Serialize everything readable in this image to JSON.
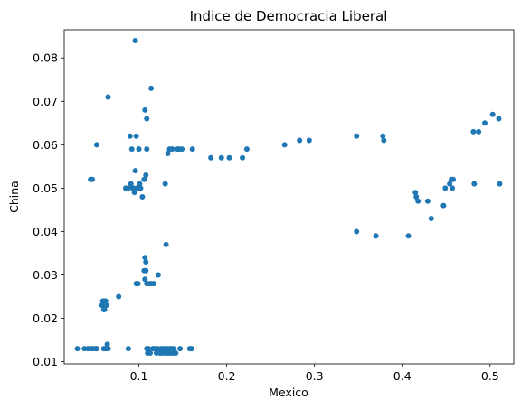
{
  "chart_data": {
    "type": "scatter",
    "title": "Indice de Democracia Liberal",
    "xlabel": "Mexico",
    "ylabel": "China",
    "xlim": [
      0.015,
      0.527
    ],
    "ylim": [
      0.0095,
      0.0865
    ],
    "xticks": [
      0.1,
      0.2,
      0.3,
      0.4,
      0.5
    ],
    "xtick_labels": [
      "0.1",
      "0.2",
      "0.3",
      "0.4",
      "0.5"
    ],
    "yticks": [
      0.01,
      0.02,
      0.03,
      0.04,
      0.05,
      0.06,
      0.07,
      0.08
    ],
    "ytick_labels": [
      "0.01",
      "0.02",
      "0.03",
      "0.04",
      "0.05",
      "0.06",
      "0.07",
      "0.08"
    ],
    "grid": false,
    "color": "#1f77b4",
    "points": [
      {
        "x": 0.03,
        "y": 0.013
      },
      {
        "x": 0.038,
        "y": 0.013
      },
      {
        "x": 0.042,
        "y": 0.013
      },
      {
        "x": 0.045,
        "y": 0.013
      },
      {
        "x": 0.047,
        "y": 0.013
      },
      {
        "x": 0.05,
        "y": 0.013
      },
      {
        "x": 0.052,
        "y": 0.013
      },
      {
        "x": 0.06,
        "y": 0.013
      },
      {
        "x": 0.062,
        "y": 0.013
      },
      {
        "x": 0.064,
        "y": 0.014
      },
      {
        "x": 0.065,
        "y": 0.013
      },
      {
        "x": 0.088,
        "y": 0.013
      },
      {
        "x": 0.045,
        "y": 0.052
      },
      {
        "x": 0.047,
        "y": 0.052
      },
      {
        "x": 0.052,
        "y": 0.06
      },
      {
        "x": 0.058,
        "y": 0.023
      },
      {
        "x": 0.059,
        "y": 0.024
      },
      {
        "x": 0.06,
        "y": 0.022
      },
      {
        "x": 0.061,
        "y": 0.022
      },
      {
        "x": 0.062,
        "y": 0.024
      },
      {
        "x": 0.063,
        "y": 0.023
      },
      {
        "x": 0.065,
        "y": 0.071
      },
      {
        "x": 0.077,
        "y": 0.025
      },
      {
        "x": 0.085,
        "y": 0.05
      },
      {
        "x": 0.088,
        "y": 0.05
      },
      {
        "x": 0.09,
        "y": 0.062
      },
      {
        "x": 0.091,
        "y": 0.051
      },
      {
        "x": 0.092,
        "y": 0.059
      },
      {
        "x": 0.093,
        "y": 0.05
      },
      {
        "x": 0.094,
        "y": 0.05
      },
      {
        "x": 0.095,
        "y": 0.049
      },
      {
        "x": 0.096,
        "y": 0.054
      },
      {
        "x": 0.096,
        "y": 0.084
      },
      {
        "x": 0.097,
        "y": 0.062
      },
      {
        "x": 0.097,
        "y": 0.028
      },
      {
        "x": 0.098,
        "y": 0.05
      },
      {
        "x": 0.099,
        "y": 0.05
      },
      {
        "x": 0.099,
        "y": 0.028
      },
      {
        "x": 0.1,
        "y": 0.059
      },
      {
        "x": 0.101,
        "y": 0.051
      },
      {
        "x": 0.102,
        "y": 0.05
      },
      {
        "x": 0.104,
        "y": 0.048
      },
      {
        "x": 0.106,
        "y": 0.052
      },
      {
        "x": 0.106,
        "y": 0.031
      },
      {
        "x": 0.107,
        "y": 0.068
      },
      {
        "x": 0.107,
        "y": 0.034
      },
      {
        "x": 0.107,
        "y": 0.029
      },
      {
        "x": 0.108,
        "y": 0.033
      },
      {
        "x": 0.108,
        "y": 0.031
      },
      {
        "x": 0.108,
        "y": 0.053
      },
      {
        "x": 0.109,
        "y": 0.066
      },
      {
        "x": 0.109,
        "y": 0.059
      },
      {
        "x": 0.109,
        "y": 0.028
      },
      {
        "x": 0.109,
        "y": 0.013
      },
      {
        "x": 0.11,
        "y": 0.012
      },
      {
        "x": 0.111,
        "y": 0.013
      },
      {
        "x": 0.112,
        "y": 0.028
      },
      {
        "x": 0.113,
        "y": 0.012
      },
      {
        "x": 0.114,
        "y": 0.073
      },
      {
        "x": 0.114,
        "y": 0.028
      },
      {
        "x": 0.116,
        "y": 0.013
      },
      {
        "x": 0.117,
        "y": 0.028
      },
      {
        "x": 0.118,
        "y": 0.013
      },
      {
        "x": 0.12,
        "y": 0.012
      },
      {
        "x": 0.121,
        "y": 0.013
      },
      {
        "x": 0.122,
        "y": 0.03
      },
      {
        "x": 0.124,
        "y": 0.012
      },
      {
        "x": 0.125,
        "y": 0.013
      },
      {
        "x": 0.126,
        "y": 0.012
      },
      {
        "x": 0.128,
        "y": 0.013
      },
      {
        "x": 0.129,
        "y": 0.013
      },
      {
        "x": 0.13,
        "y": 0.051
      },
      {
        "x": 0.13,
        "y": 0.012
      },
      {
        "x": 0.131,
        "y": 0.037
      },
      {
        "x": 0.132,
        "y": 0.013
      },
      {
        "x": 0.133,
        "y": 0.058
      },
      {
        "x": 0.133,
        "y": 0.012
      },
      {
        "x": 0.135,
        "y": 0.059
      },
      {
        "x": 0.135,
        "y": 0.013
      },
      {
        "x": 0.136,
        "y": 0.012
      },
      {
        "x": 0.137,
        "y": 0.013
      },
      {
        "x": 0.138,
        "y": 0.059
      },
      {
        "x": 0.139,
        "y": 0.012
      },
      {
        "x": 0.14,
        "y": 0.013
      },
      {
        "x": 0.142,
        "y": 0.012
      },
      {
        "x": 0.144,
        "y": 0.059
      },
      {
        "x": 0.146,
        "y": 0.059
      },
      {
        "x": 0.147,
        "y": 0.013
      },
      {
        "x": 0.149,
        "y": 0.059
      },
      {
        "x": 0.158,
        "y": 0.013
      },
      {
        "x": 0.16,
        "y": 0.013
      },
      {
        "x": 0.161,
        "y": 0.059
      },
      {
        "x": 0.182,
        "y": 0.057
      },
      {
        "x": 0.194,
        "y": 0.057
      },
      {
        "x": 0.203,
        "y": 0.057
      },
      {
        "x": 0.218,
        "y": 0.057
      },
      {
        "x": 0.223,
        "y": 0.059
      },
      {
        "x": 0.266,
        "y": 0.06
      },
      {
        "x": 0.283,
        "y": 0.061
      },
      {
        "x": 0.294,
        "y": 0.061
      },
      {
        "x": 0.348,
        "y": 0.062
      },
      {
        "x": 0.348,
        "y": 0.04
      },
      {
        "x": 0.37,
        "y": 0.039
      },
      {
        "x": 0.378,
        "y": 0.062
      },
      {
        "x": 0.379,
        "y": 0.061
      },
      {
        "x": 0.407,
        "y": 0.039
      },
      {
        "x": 0.415,
        "y": 0.049
      },
      {
        "x": 0.416,
        "y": 0.048
      },
      {
        "x": 0.418,
        "y": 0.047
      },
      {
        "x": 0.429,
        "y": 0.047
      },
      {
        "x": 0.433,
        "y": 0.043
      },
      {
        "x": 0.447,
        "y": 0.046
      },
      {
        "x": 0.449,
        "y": 0.05
      },
      {
        "x": 0.454,
        "y": 0.051
      },
      {
        "x": 0.456,
        "y": 0.052
      },
      {
        "x": 0.457,
        "y": 0.05
      },
      {
        "x": 0.458,
        "y": 0.052
      },
      {
        "x": 0.481,
        "y": 0.063
      },
      {
        "x": 0.482,
        "y": 0.051
      },
      {
        "x": 0.487,
        "y": 0.063
      },
      {
        "x": 0.494,
        "y": 0.065
      },
      {
        "x": 0.503,
        "y": 0.067
      },
      {
        "x": 0.51,
        "y": 0.066
      },
      {
        "x": 0.511,
        "y": 0.051
      }
    ]
  }
}
